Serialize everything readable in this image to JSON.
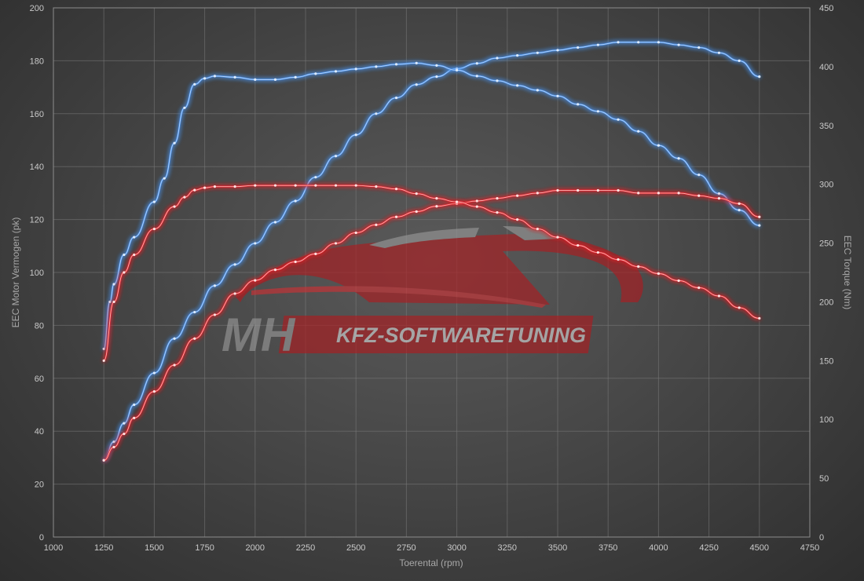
{
  "chart_data": {
    "type": "line",
    "xlabel": "Toerental (rpm)",
    "ylabel": "EEC Motor Vermogen (pk)",
    "y2label": "EEC Torque (Nm)",
    "xlim": [
      1000,
      4750
    ],
    "ylim": [
      0,
      200
    ],
    "y2lim": [
      0,
      450
    ],
    "xticks": [
      "1000",
      "1250",
      "1500",
      "1750",
      "2000",
      "2250",
      "2500",
      "2750",
      "3000",
      "3250",
      "3500",
      "3750",
      "4000",
      "4250",
      "4500",
      "4750"
    ],
    "yticks": [
      "0",
      "20",
      "40",
      "60",
      "80",
      "100",
      "120",
      "140",
      "160",
      "180",
      "200"
    ],
    "y2ticks": [
      "0",
      "50",
      "100",
      "150",
      "200",
      "250",
      "300",
      "350",
      "400",
      "450"
    ],
    "grid": true,
    "legend": "none",
    "series": [
      {
        "color": "#4a8fe6",
        "axis": "left",
        "points": [
          [
            1250,
            29
          ],
          [
            1300,
            36
          ],
          [
            1350,
            43
          ],
          [
            1400,
            50
          ],
          [
            1500,
            62
          ],
          [
            1600,
            75
          ],
          [
            1700,
            85
          ],
          [
            1800,
            95
          ],
          [
            1900,
            103
          ],
          [
            2000,
            111
          ],
          [
            2100,
            119
          ],
          [
            2200,
            127
          ],
          [
            2300,
            136
          ],
          [
            2400,
            144
          ],
          [
            2500,
            152
          ],
          [
            2600,
            160
          ],
          [
            2700,
            166
          ],
          [
            2800,
            171
          ],
          [
            2900,
            174
          ],
          [
            3000,
            177
          ],
          [
            3100,
            179
          ],
          [
            3200,
            181
          ],
          [
            3300,
            182
          ],
          [
            3400,
            183
          ],
          [
            3500,
            184
          ],
          [
            3600,
            185
          ],
          [
            3700,
            186
          ],
          [
            3800,
            187
          ],
          [
            3900,
            187
          ],
          [
            4000,
            187
          ],
          [
            4100,
            186
          ],
          [
            4200,
            185
          ],
          [
            4300,
            183
          ],
          [
            4400,
            180
          ],
          [
            4500,
            174
          ]
        ]
      },
      {
        "color": "#4a8fe6",
        "axis": "right",
        "points": [
          [
            1250,
            160
          ],
          [
            1280,
            200
          ],
          [
            1300,
            215
          ],
          [
            1350,
            240
          ],
          [
            1400,
            255
          ],
          [
            1500,
            285
          ],
          [
            1550,
            305
          ],
          [
            1600,
            335
          ],
          [
            1650,
            365
          ],
          [
            1700,
            385
          ],
          [
            1750,
            390
          ],
          [
            1800,
            392
          ],
          [
            1900,
            391
          ],
          [
            2000,
            389
          ],
          [
            2100,
            389
          ],
          [
            2200,
            391
          ],
          [
            2300,
            394
          ],
          [
            2400,
            396
          ],
          [
            2500,
            398
          ],
          [
            2600,
            400
          ],
          [
            2700,
            402
          ],
          [
            2800,
            403
          ],
          [
            2900,
            401
          ],
          [
            3000,
            397
          ],
          [
            3100,
            392
          ],
          [
            3200,
            388
          ],
          [
            3300,
            384
          ],
          [
            3400,
            380
          ],
          [
            3500,
            375
          ],
          [
            3600,
            368
          ],
          [
            3700,
            362
          ],
          [
            3800,
            355
          ],
          [
            3900,
            345
          ],
          [
            4000,
            333
          ],
          [
            4100,
            322
          ],
          [
            4200,
            308
          ],
          [
            4300,
            292
          ],
          [
            4400,
            278
          ],
          [
            4500,
            265
          ]
        ]
      },
      {
        "color": "#e0282c",
        "axis": "left",
        "points": [
          [
            1250,
            29
          ],
          [
            1300,
            34
          ],
          [
            1350,
            39
          ],
          [
            1400,
            45
          ],
          [
            1500,
            55
          ],
          [
            1600,
            65
          ],
          [
            1700,
            75
          ],
          [
            1800,
            84
          ],
          [
            1900,
            92
          ],
          [
            2000,
            97
          ],
          [
            2100,
            101
          ],
          [
            2200,
            104
          ],
          [
            2300,
            107
          ],
          [
            2400,
            111
          ],
          [
            2500,
            115
          ],
          [
            2600,
            118
          ],
          [
            2700,
            121
          ],
          [
            2800,
            123
          ],
          [
            2900,
            125
          ],
          [
            3000,
            126
          ],
          [
            3100,
            127
          ],
          [
            3200,
            128
          ],
          [
            3300,
            129
          ],
          [
            3400,
            130
          ],
          [
            3500,
            131
          ],
          [
            3600,
            131
          ],
          [
            3700,
            131
          ],
          [
            3800,
            131
          ],
          [
            3900,
            130
          ],
          [
            4000,
            130
          ],
          [
            4100,
            130
          ],
          [
            4200,
            129
          ],
          [
            4300,
            128
          ],
          [
            4400,
            126
          ],
          [
            4500,
            121
          ]
        ]
      },
      {
        "color": "#e0282c",
        "axis": "right",
        "points": [
          [
            1250,
            150
          ],
          [
            1300,
            200
          ],
          [
            1350,
            225
          ],
          [
            1400,
            240
          ],
          [
            1500,
            262
          ],
          [
            1600,
            281
          ],
          [
            1650,
            289
          ],
          [
            1700,
            295
          ],
          [
            1750,
            297
          ],
          [
            1800,
            298
          ],
          [
            1900,
            298
          ],
          [
            2000,
            299
          ],
          [
            2100,
            299
          ],
          [
            2200,
            299
          ],
          [
            2300,
            299
          ],
          [
            2400,
            299
          ],
          [
            2500,
            299
          ],
          [
            2600,
            298
          ],
          [
            2700,
            296
          ],
          [
            2800,
            292
          ],
          [
            2900,
            288
          ],
          [
            3000,
            285
          ],
          [
            3100,
            281
          ],
          [
            3200,
            276
          ],
          [
            3300,
            270
          ],
          [
            3400,
            262
          ],
          [
            3500,
            255
          ],
          [
            3600,
            248
          ],
          [
            3700,
            242
          ],
          [
            3800,
            236
          ],
          [
            3900,
            230
          ],
          [
            4000,
            224
          ],
          [
            4100,
            218
          ],
          [
            4200,
            212
          ],
          [
            4300,
            205
          ],
          [
            4400,
            195
          ],
          [
            4500,
            186
          ]
        ]
      }
    ],
    "watermark": {
      "mark": "MH",
      "text": "KFZ-SOFTWARETUNING"
    }
  }
}
